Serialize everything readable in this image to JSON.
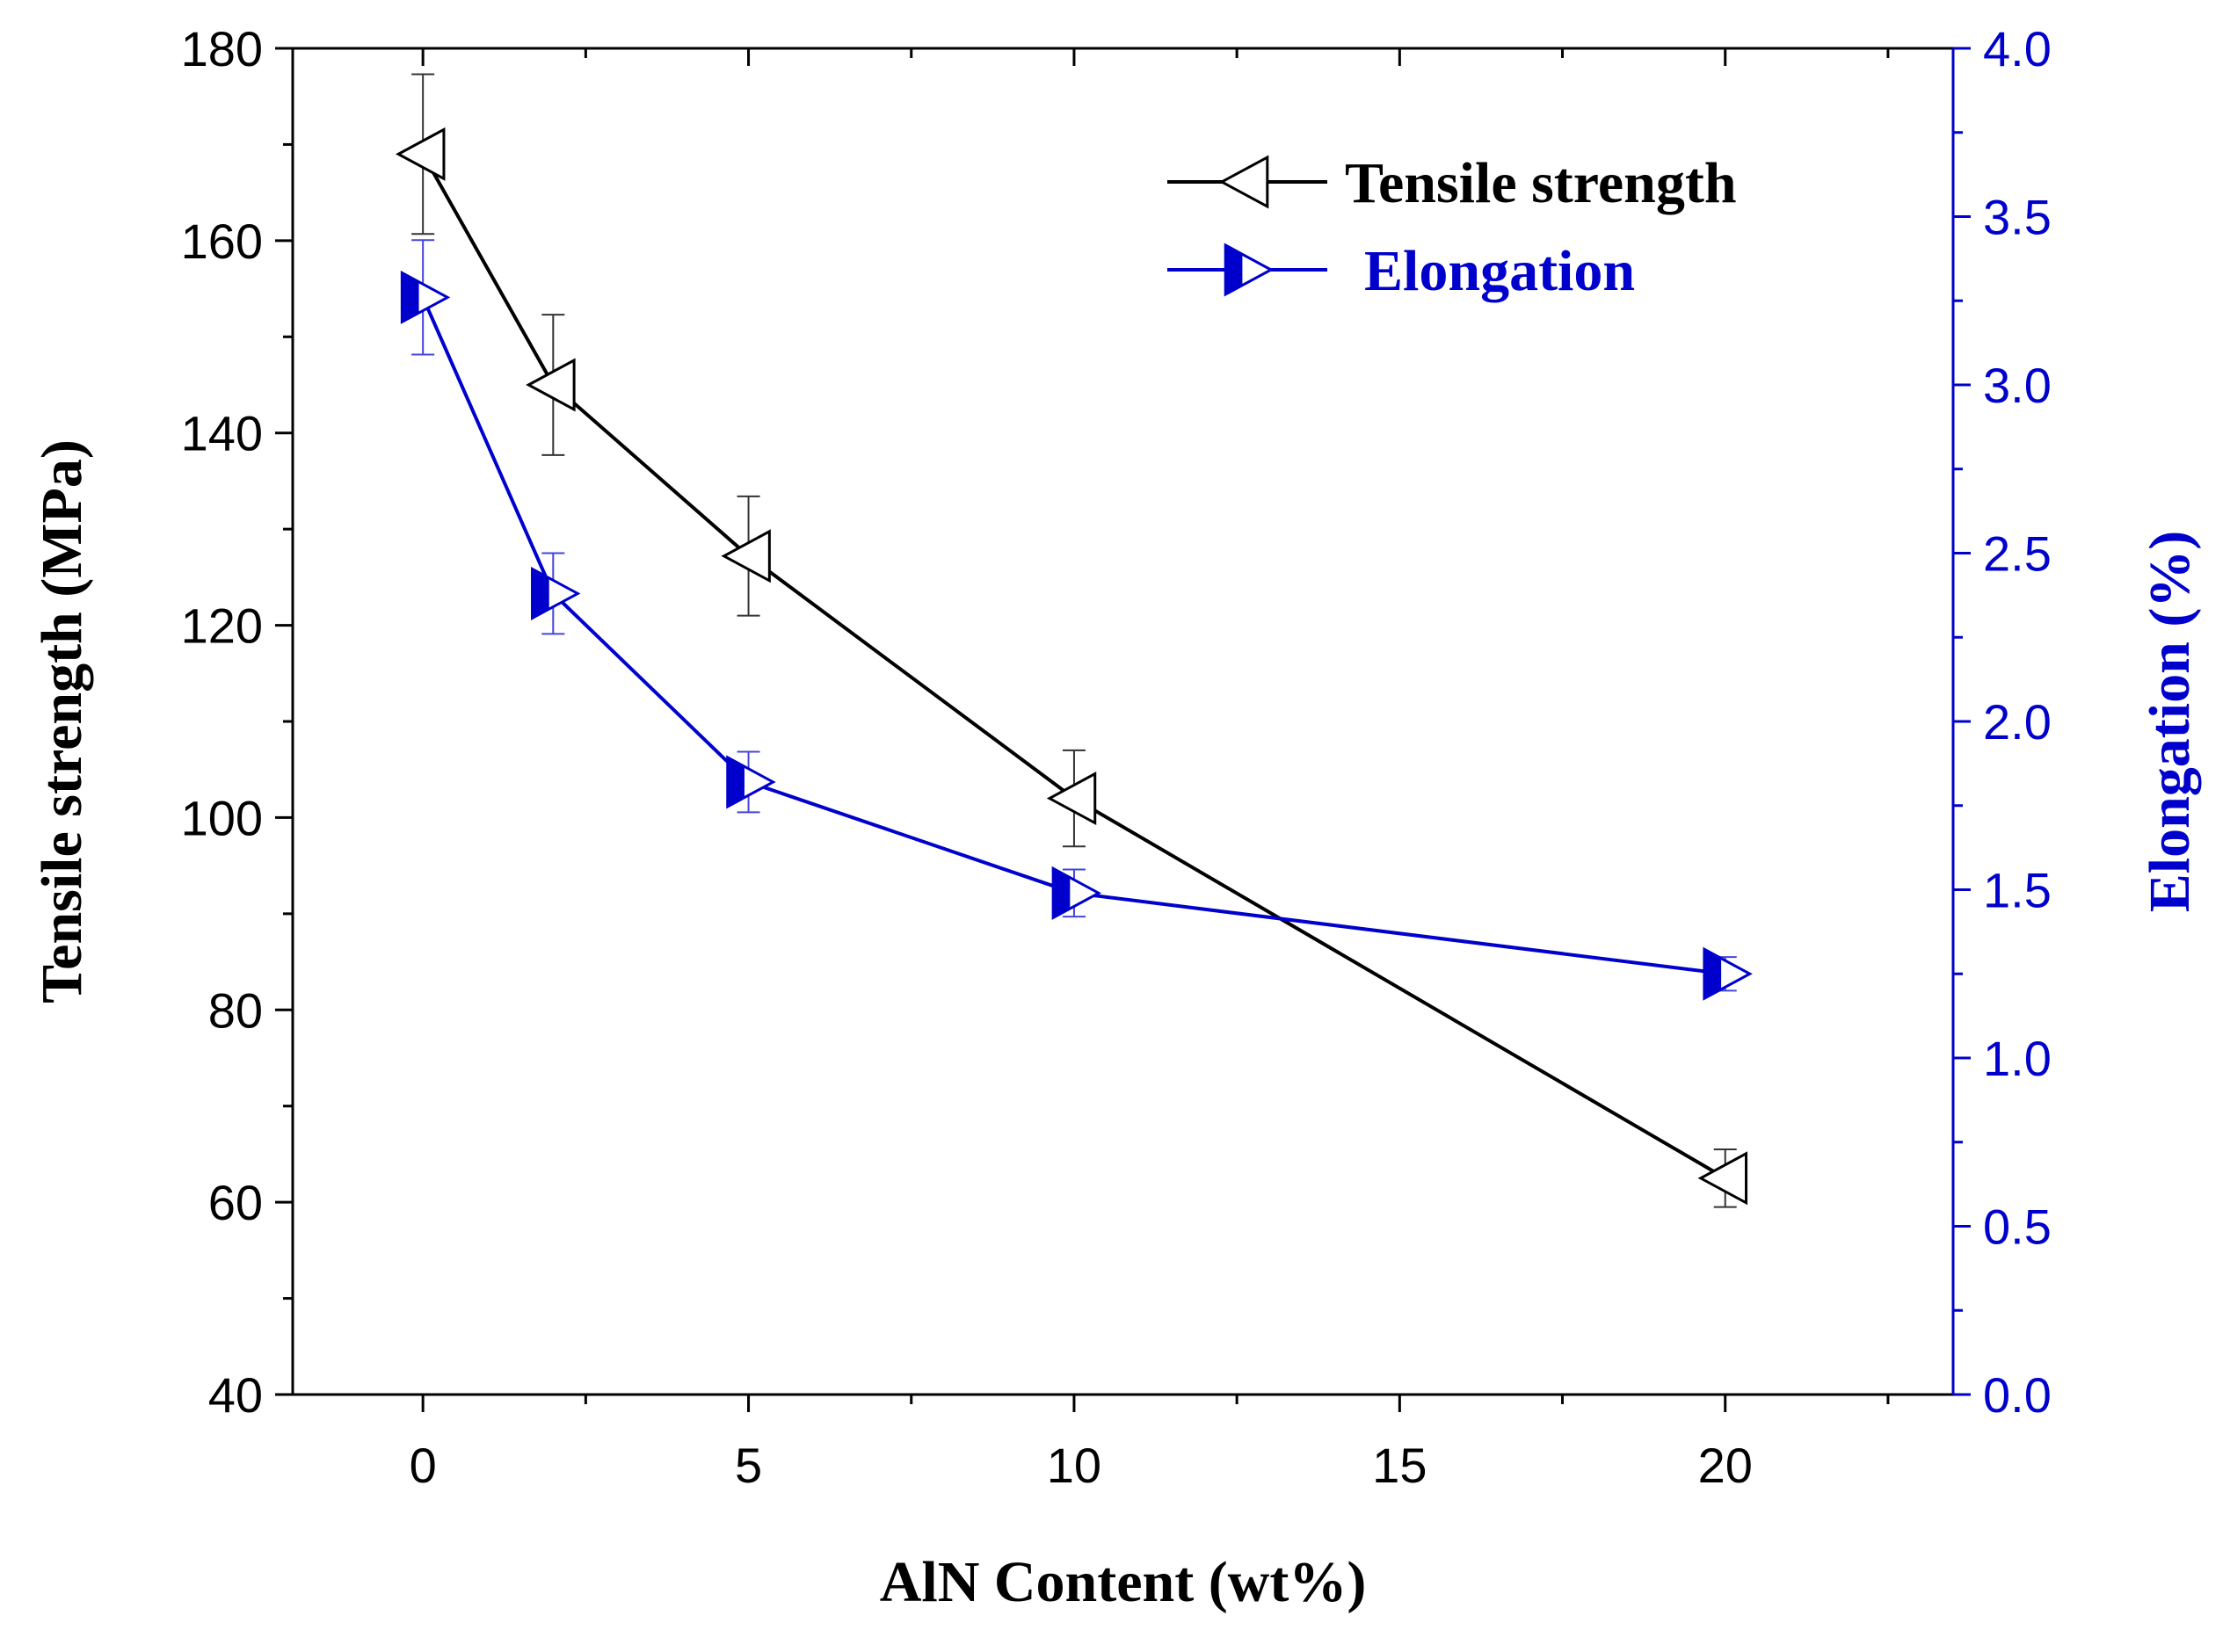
{
  "chart_data": {
    "type": "line",
    "title": "",
    "xlabel": "AlN Content (wt%)",
    "ylabel": "Tensile strength (MPa)",
    "y2label": "Elongation (%)",
    "xlim": [
      -2,
      23.5
    ],
    "ylim": [
      40,
      180
    ],
    "y2lim": [
      0.0,
      4.0
    ],
    "xticks": [
      0,
      5,
      10,
      15,
      20
    ],
    "xtick_labels": [
      "0",
      "5",
      "10",
      "15",
      "20"
    ],
    "yticks": [
      40,
      60,
      80,
      100,
      120,
      140,
      160,
      180
    ],
    "ytick_labels": [
      "40",
      "60",
      "80",
      "100",
      "120",
      "140",
      "160",
      "180"
    ],
    "y2ticks": [
      0.0,
      0.5,
      1.0,
      1.5,
      2.0,
      2.5,
      3.0,
      3.5,
      4.0
    ],
    "y2tick_labels": [
      "0.0",
      "0.5",
      "1.0",
      "1.5",
      "2.0",
      "2.5",
      "3.0",
      "3.5",
      "4.0"
    ],
    "legend_position": "top-right",
    "series": [
      {
        "name": "Tensile strength",
        "axis": "left",
        "color": "#000000",
        "marker": "left-triangle-open",
        "x": [
          0,
          2,
          5,
          10,
          20
        ],
        "values": [
          169,
          145,
          127.2,
          102,
          62.5
        ],
        "errors": [
          8.3,
          7.3,
          6.2,
          5.0,
          3.0
        ]
      },
      {
        "name": "Elongation",
        "axis": "right",
        "color": "#0000cc",
        "marker": "right-triangle-half",
        "x": [
          0,
          2,
          5,
          10,
          20
        ],
        "values": [
          3.26,
          2.38,
          1.82,
          1.49,
          1.25
        ],
        "errors": [
          0.17,
          0.12,
          0.09,
          0.07,
          0.05
        ]
      }
    ]
  }
}
